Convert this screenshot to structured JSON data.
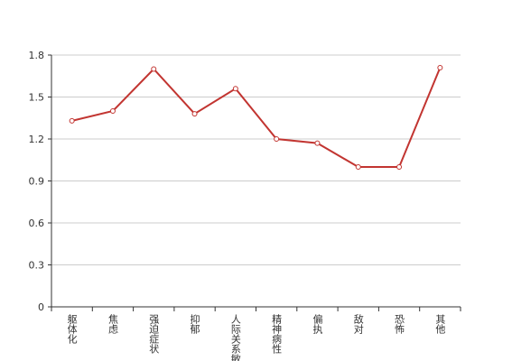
{
  "chart_data": {
    "type": "line",
    "categories": [
      "躯体化",
      "焦虑",
      "强迫症状",
      "抑郁",
      "人际关系敏感",
      "精神病性",
      "偏执",
      "敌对",
      "恐怖",
      "其他"
    ],
    "series": [
      {
        "color": "#c23531",
        "values": [
          1.33,
          1.4,
          1.7,
          1.38,
          1.56,
          1.2,
          1.17,
          1.0,
          1.0,
          1.71
        ]
      }
    ],
    "ylim": [
      0,
      1.8
    ],
    "yticks": [
      0,
      0.3,
      0.6,
      0.9,
      1.2,
      1.5,
      1.8
    ],
    "grid": true
  }
}
